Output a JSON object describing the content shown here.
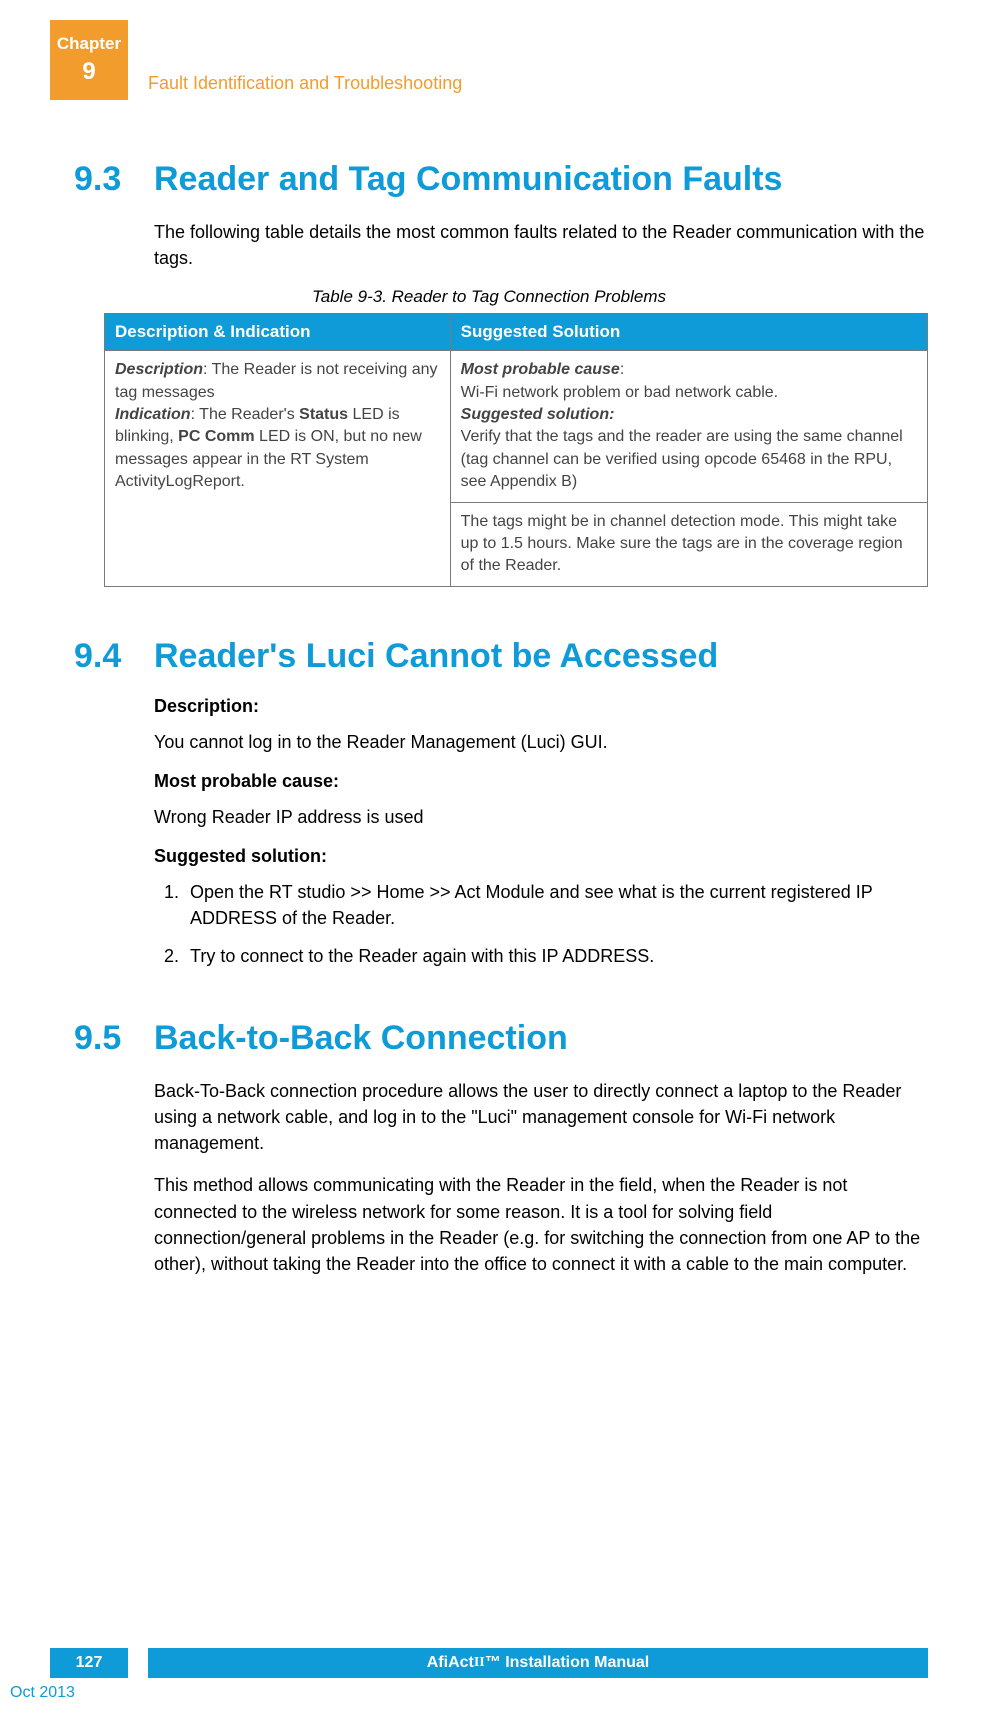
{
  "header": {
    "chapter_label": "Chapter",
    "chapter_num": "9",
    "title": "Fault Identification and Troubleshooting"
  },
  "section93": {
    "num": "9.3",
    "title": "Reader and Tag Communication Faults",
    "intro": "The following table details the most common faults related to the Reader communication with the tags.",
    "table_caption": "Table 9-3. Reader to Tag Connection Problems",
    "th1": "Description & Indication",
    "th2": "Suggested Solution",
    "cell_desc_label": "Description",
    "cell_desc_text": ": The Reader is not receiving any tag messages",
    "cell_ind_label": "Indication",
    "cell_ind_text_a": ": The Reader's  ",
    "cell_ind_bold1": "Status",
    "cell_ind_text_b": " LED is blinking, ",
    "cell_ind_bold2": "PC Comm",
    "cell_ind_text_c": " LED is ON, but no new messages appear in the RT System ActivityLogReport.",
    "cell_sol_cause_label": "Most probable cause",
    "cell_sol_cause_colon": ":",
    "cell_sol_cause_text": "Wi-Fi network problem or bad network cable.",
    "cell_sol_sugg_label": "Suggested solution:",
    "cell_sol_sugg_text": "Verify that the tags and the reader are using the same channel (tag channel can be verified using opcode 65468 in the RPU, see Appendix B)",
    "cell_sol2_text": "The tags might be in channel detection mode. This might take up to 1.5 hours. Make sure the tags are in the coverage region of the Reader."
  },
  "section94": {
    "num": "9.4",
    "title": "Reader's Luci Cannot be Accessed",
    "desc_label": "Description:",
    "desc_text": "You cannot log in to the Reader Management (Luci) GUI.",
    "cause_label": "Most probable cause:",
    "cause_text": "Wrong Reader IP address is used",
    "sugg_label": "Suggested solution:",
    "step1": "Open the RT studio >> Home >> Act Module and see what is the current registered IP ADDRESS of the Reader.",
    "step2": "Try to connect to the Reader again with this IP ADDRESS."
  },
  "section95": {
    "num": "9.5",
    "title": "Back-to-Back Connection",
    "p1": "Back-To-Back connection procedure allows the user to directly connect a laptop to the Reader using a network cable, and log in to the \"Luci\" management console for Wi-Fi network management.",
    "p2": "This method allows communicating with the Reader in the field, when the Reader is not connected to the wireless network for some reason. It is a tool for solving field connection/general problems in the Reader (e.g. for switching the connection from one AP to the other), without taking the Reader into the office to connect it with a cable to the main computer."
  },
  "footer": {
    "page_num": "127",
    "manual_title_a": "AfiAct ",
    "manual_title_b": "II",
    "manual_title_c": "™ Installation Manual",
    "date": "Oct 2013"
  },
  "colors": {
    "orange": "#f39c2e",
    "blue": "#0e9bd8",
    "text": "#000000",
    "table_text": "#444444",
    "table_border": "#7a7a7a"
  }
}
